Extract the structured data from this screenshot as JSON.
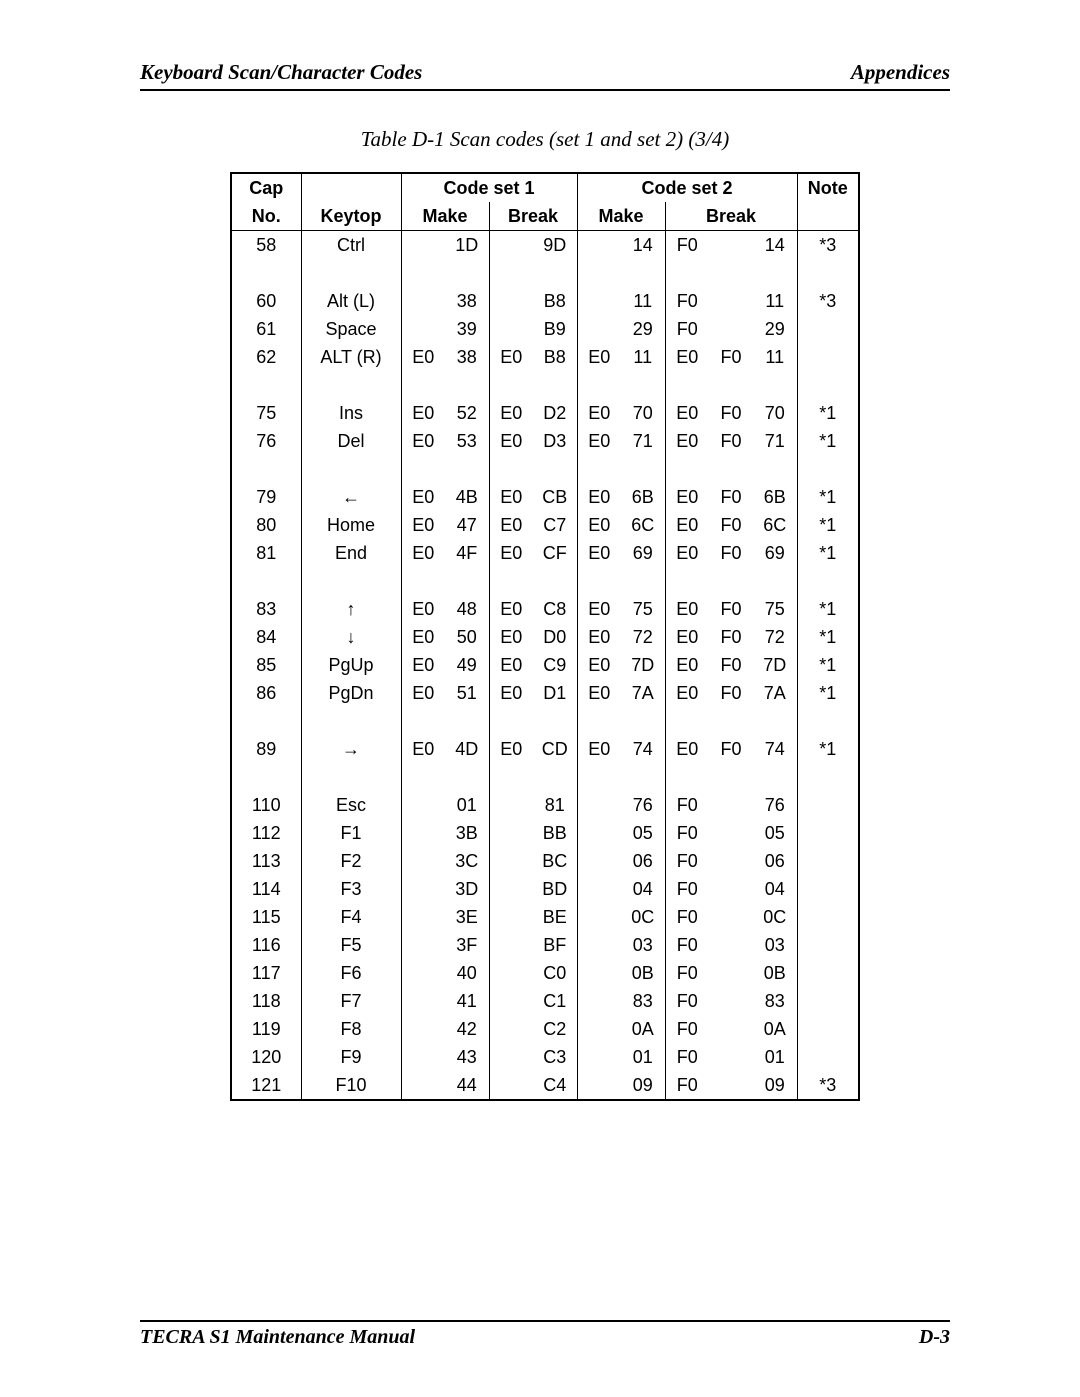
{
  "header": {
    "left": "Keyboard Scan/Character Codes",
    "right": "Appendices"
  },
  "caption": "Table D-1  Scan codes (set 1 and set 2) (3/4)",
  "table": {
    "head1": {
      "cap": "Cap",
      "set1": "Code set 1",
      "set2": "Code set 2",
      "note": "Note"
    },
    "head2": {
      "no": "No.",
      "keytop": "Keytop",
      "make": "Make",
      "break": "Break"
    },
    "rows": [
      {
        "no": "58",
        "key": "Ctrl",
        "m1": [
          "",
          "1D"
        ],
        "b1": [
          "",
          "9D"
        ],
        "m2": [
          "",
          "14"
        ],
        "b2": [
          "F0",
          "",
          "14"
        ],
        "note": "*3"
      },
      {
        "gap": true
      },
      {
        "no": "60",
        "key": "Alt (L)",
        "m1": [
          "",
          "38"
        ],
        "b1": [
          "",
          "B8"
        ],
        "m2": [
          "",
          "11"
        ],
        "b2": [
          "F0",
          "",
          "11"
        ],
        "note": "*3"
      },
      {
        "no": "61",
        "key": "Space",
        "m1": [
          "",
          "39"
        ],
        "b1": [
          "",
          "B9"
        ],
        "m2": [
          "",
          "29"
        ],
        "b2": [
          "F0",
          "",
          "29"
        ],
        "note": ""
      },
      {
        "no": "62",
        "key": "ALT (R)",
        "m1": [
          "E0",
          "38"
        ],
        "b1": [
          "E0",
          "B8"
        ],
        "m2": [
          "E0",
          "11"
        ],
        "b2": [
          "E0",
          "F0",
          "11"
        ],
        "note": ""
      },
      {
        "gap": true
      },
      {
        "no": "75",
        "key": "Ins",
        "m1": [
          "E0",
          "52"
        ],
        "b1": [
          "E0",
          "D2"
        ],
        "m2": [
          "E0",
          "70"
        ],
        "b2": [
          "E0",
          "F0",
          "70"
        ],
        "note": "*1"
      },
      {
        "no": "76",
        "key": "Del",
        "m1": [
          "E0",
          "53"
        ],
        "b1": [
          "E0",
          "D3"
        ],
        "m2": [
          "E0",
          "71"
        ],
        "b2": [
          "E0",
          "F0",
          "71"
        ],
        "note": "*1"
      },
      {
        "gap": true
      },
      {
        "no": "79",
        "key": "←",
        "m1": [
          "E0",
          "4B"
        ],
        "b1": [
          "E0",
          "CB"
        ],
        "m2": [
          "E0",
          "6B"
        ],
        "b2": [
          "E0",
          "F0",
          "6B"
        ],
        "note": "*1"
      },
      {
        "no": "80",
        "key": "Home",
        "m1": [
          "E0",
          "47"
        ],
        "b1": [
          "E0",
          "C7"
        ],
        "m2": [
          "E0",
          "6C"
        ],
        "b2": [
          "E0",
          "F0",
          "6C"
        ],
        "note": "*1"
      },
      {
        "no": "81",
        "key": "End",
        "m1": [
          "E0",
          "4F"
        ],
        "b1": [
          "E0",
          "CF"
        ],
        "m2": [
          "E0",
          "69"
        ],
        "b2": [
          "E0",
          "F0",
          "69"
        ],
        "note": "*1"
      },
      {
        "gap": true
      },
      {
        "no": "83",
        "key": "↑",
        "m1": [
          "E0",
          "48"
        ],
        "b1": [
          "E0",
          "C8"
        ],
        "m2": [
          "E0",
          "75"
        ],
        "b2": [
          "E0",
          "F0",
          "75"
        ],
        "note": "*1"
      },
      {
        "no": "84",
        "key": "↓",
        "m1": [
          "E0",
          "50"
        ],
        "b1": [
          "E0",
          "D0"
        ],
        "m2": [
          "E0",
          "72"
        ],
        "b2": [
          "E0",
          "F0",
          "72"
        ],
        "note": "*1"
      },
      {
        "no": "85",
        "key": "PgUp",
        "m1": [
          "E0",
          "49"
        ],
        "b1": [
          "E0",
          "C9"
        ],
        "m2": [
          "E0",
          "7D"
        ],
        "b2": [
          "E0",
          "F0",
          "7D"
        ],
        "note": "*1"
      },
      {
        "no": "86",
        "key": "PgDn",
        "m1": [
          "E0",
          "51"
        ],
        "b1": [
          "E0",
          "D1"
        ],
        "m2": [
          "E0",
          "7A"
        ],
        "b2": [
          "E0",
          "F0",
          "7A"
        ],
        "note": "*1"
      },
      {
        "gap": true
      },
      {
        "no": "89",
        "key": "→",
        "m1": [
          "E0",
          "4D"
        ],
        "b1": [
          "E0",
          "CD"
        ],
        "m2": [
          "E0",
          "74"
        ],
        "b2": [
          "E0",
          "F0",
          "74"
        ],
        "note": "*1"
      },
      {
        "gap": true
      },
      {
        "no": "110",
        "key": "Esc",
        "m1": [
          "",
          "01"
        ],
        "b1": [
          "",
          "81"
        ],
        "m2": [
          "",
          "76"
        ],
        "b2": [
          "F0",
          "",
          "76"
        ],
        "note": ""
      },
      {
        "no": "112",
        "key": "F1",
        "m1": [
          "",
          "3B"
        ],
        "b1": [
          "",
          "BB"
        ],
        "m2": [
          "",
          "05"
        ],
        "b2": [
          "F0",
          "",
          "05"
        ],
        "note": ""
      },
      {
        "no": "113",
        "key": "F2",
        "m1": [
          "",
          "3C"
        ],
        "b1": [
          "",
          "BC"
        ],
        "m2": [
          "",
          "06"
        ],
        "b2": [
          "F0",
          "",
          "06"
        ],
        "note": ""
      },
      {
        "no": "114",
        "key": "F3",
        "m1": [
          "",
          "3D"
        ],
        "b1": [
          "",
          "BD"
        ],
        "m2": [
          "",
          "04"
        ],
        "b2": [
          "F0",
          "",
          "04"
        ],
        "note": ""
      },
      {
        "no": "115",
        "key": "F4",
        "m1": [
          "",
          "3E"
        ],
        "b1": [
          "",
          "BE"
        ],
        "m2": [
          "",
          "0C"
        ],
        "b2": [
          "F0",
          "",
          "0C"
        ],
        "note": ""
      },
      {
        "no": "116",
        "key": "F5",
        "m1": [
          "",
          "3F"
        ],
        "b1": [
          "",
          "BF"
        ],
        "m2": [
          "",
          "03"
        ],
        "b2": [
          "F0",
          "",
          "03"
        ],
        "note": ""
      },
      {
        "no": "117",
        "key": "F6",
        "m1": [
          "",
          "40"
        ],
        "b1": [
          "",
          "C0"
        ],
        "m2": [
          "",
          "0B"
        ],
        "b2": [
          "F0",
          "",
          "0B"
        ],
        "note": ""
      },
      {
        "no": "118",
        "key": "F7",
        "m1": [
          "",
          "41"
        ],
        "b1": [
          "",
          "C1"
        ],
        "m2": [
          "",
          "83"
        ],
        "b2": [
          "F0",
          "",
          "83"
        ],
        "note": ""
      },
      {
        "no": "119",
        "key": "F8",
        "m1": [
          "",
          "42"
        ],
        "b1": [
          "",
          "C2"
        ],
        "m2": [
          "",
          "0A"
        ],
        "b2": [
          "F0",
          "",
          "0A"
        ],
        "note": ""
      },
      {
        "no": "120",
        "key": "F9",
        "m1": [
          "",
          "43"
        ],
        "b1": [
          "",
          "C3"
        ],
        "m2": [
          "",
          "01"
        ],
        "b2": [
          "F0",
          "",
          "01"
        ],
        "note": ""
      },
      {
        "no": "121",
        "key": "F10",
        "m1": [
          "",
          "44"
        ],
        "b1": [
          "",
          "C4"
        ],
        "m2": [
          "",
          "09"
        ],
        "b2": [
          "F0",
          "",
          "09"
        ],
        "note": "*3"
      }
    ]
  },
  "footer": {
    "left": "TECRA S1   Maintenance Manual",
    "right": "D-3"
  }
}
